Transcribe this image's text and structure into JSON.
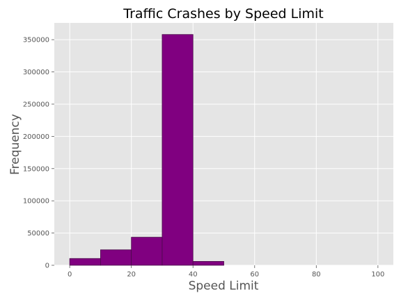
{
  "chart_data": {
    "type": "bar",
    "subtype": "histogram",
    "title": "Traffic Crashes by Speed Limit",
    "xlabel": "Speed Limit",
    "ylabel": "Frequency",
    "xlim": [
      -5,
      105
    ],
    "ylim": [
      0,
      376000
    ],
    "x_ticks": [
      0,
      20,
      40,
      60,
      80,
      100
    ],
    "y_ticks": [
      0,
      50000,
      100000,
      150000,
      200000,
      250000,
      300000,
      350000
    ],
    "grid": true,
    "bins": [
      {
        "start": 0,
        "end": 10,
        "count": 10500
      },
      {
        "start": 10,
        "end": 20,
        "count": 24000
      },
      {
        "start": 20,
        "end": 30,
        "count": 43500
      },
      {
        "start": 30,
        "end": 40,
        "count": 358000
      },
      {
        "start": 40,
        "end": 50,
        "count": 6000
      },
      {
        "start": 50,
        "end": 60,
        "count": 0
      },
      {
        "start": 60,
        "end": 70,
        "count": 0
      },
      {
        "start": 70,
        "end": 80,
        "count": 0
      },
      {
        "start": 80,
        "end": 90,
        "count": 0
      },
      {
        "start": 90,
        "end": 100,
        "count": 0
      }
    ],
    "colors": {
      "bar_fill": "#800080",
      "bar_edge": "#4a0a4a",
      "plot_background": "#e5e5e5",
      "grid": "#ffffff"
    }
  }
}
